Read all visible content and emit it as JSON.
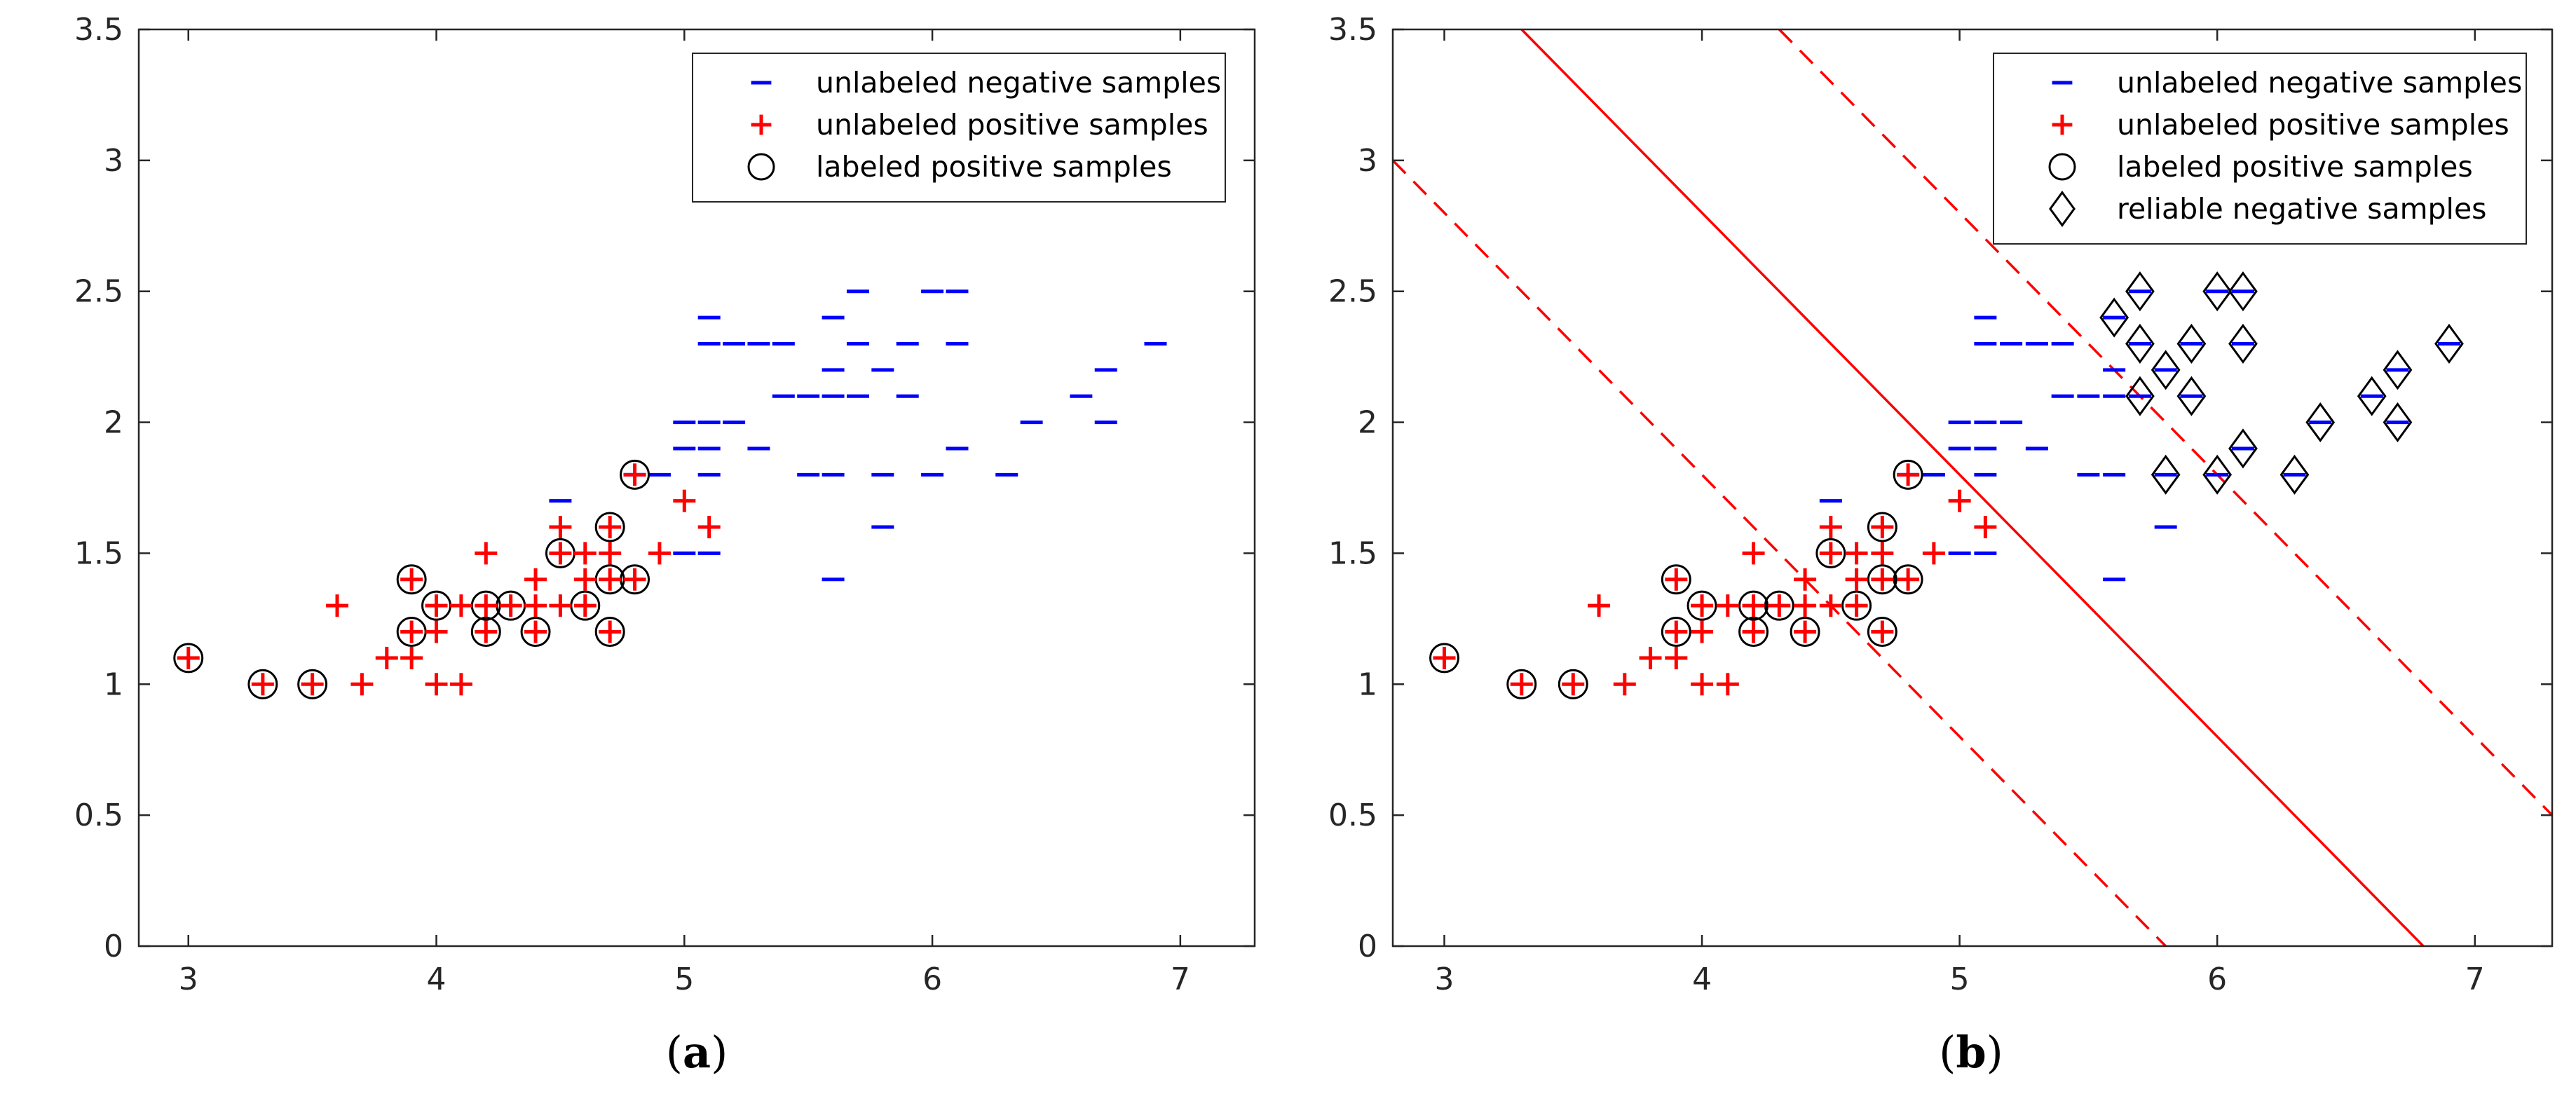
{
  "colors": {
    "negative": "#0000ff",
    "positive": "#ff0000",
    "marker_outline": "#000000",
    "axes": "#262626",
    "boundary": "#ff0000"
  },
  "chart_data": [
    {
      "id": "a",
      "type": "scatter",
      "caption": {
        "open": "(",
        "letter": "a",
        "close": ")"
      },
      "xlim": [
        2.8,
        7.3
      ],
      "ylim": [
        0,
        3.5
      ],
      "xticks": [
        3,
        4,
        5,
        6,
        7
      ],
      "xtick_labels": [
        "3",
        "4",
        "5",
        "6",
        "7"
      ],
      "yticks": [
        0,
        0.5,
        1,
        1.5,
        2,
        2.5,
        3,
        3.5
      ],
      "ytick_labels": [
        "0",
        "0.5",
        "1",
        "1.5",
        "2",
        "2.5",
        "3",
        "3.5"
      ],
      "grid": false,
      "legend_position": "top-right",
      "legend": [
        {
          "label": "unlabeled negative samples",
          "symbol": "minus",
          "color": "#0000ff"
        },
        {
          "label": "unlabeled positive samples",
          "symbol": "plus",
          "color": "#ff0000"
        },
        {
          "label": "labeled positive samples",
          "symbol": "circle",
          "color": "#000000"
        }
      ],
      "series": [
        {
          "name": "unlabeled negative samples",
          "marker": "minus",
          "points": [
            [
              4.9,
              1.8
            ],
            [
              5.0,
              1.5
            ],
            [
              5.0,
              1.9
            ],
            [
              5.0,
              2.0
            ],
            [
              5.1,
              1.5
            ],
            [
              5.1,
              1.8
            ],
            [
              5.1,
              1.9
            ],
            [
              5.1,
              2.0
            ],
            [
              5.1,
              2.3
            ],
            [
              5.1,
              2.4
            ],
            [
              5.2,
              2.0
            ],
            [
              5.2,
              2.3
            ],
            [
              5.3,
              1.9
            ],
            [
              5.3,
              2.3
            ],
            [
              5.4,
              2.1
            ],
            [
              5.4,
              2.3
            ],
            [
              5.5,
              1.8
            ],
            [
              5.5,
              2.1
            ],
            [
              5.6,
              1.4
            ],
            [
              5.6,
              1.8
            ],
            [
              5.6,
              2.1
            ],
            [
              5.6,
              2.2
            ],
            [
              5.6,
              2.4
            ],
            [
              5.7,
              2.1
            ],
            [
              5.7,
              2.3
            ],
            [
              5.7,
              2.5
            ],
            [
              5.8,
              1.6
            ],
            [
              5.8,
              1.8
            ],
            [
              5.8,
              2.2
            ],
            [
              5.9,
              2.1
            ],
            [
              5.9,
              2.3
            ],
            [
              6.0,
              1.8
            ],
            [
              6.0,
              2.5
            ],
            [
              6.1,
              1.9
            ],
            [
              6.1,
              2.3
            ],
            [
              6.1,
              2.5
            ],
            [
              6.3,
              1.8
            ],
            [
              6.4,
              2.0
            ],
            [
              6.6,
              2.1
            ],
            [
              6.7,
              2.0
            ],
            [
              6.7,
              2.2
            ],
            [
              6.9,
              2.3
            ],
            [
              4.5,
              1.7
            ],
            [
              4.8,
              1.8
            ]
          ]
        },
        {
          "name": "unlabeled positive samples",
          "marker": "plus",
          "points": [
            [
              3.0,
              1.1
            ],
            [
              3.3,
              1.0
            ],
            [
              3.5,
              1.0
            ],
            [
              3.6,
              1.3
            ],
            [
              3.7,
              1.0
            ],
            [
              3.8,
              1.1
            ],
            [
              3.9,
              1.1
            ],
            [
              3.9,
              1.2
            ],
            [
              3.9,
              1.4
            ],
            [
              4.0,
              1.0
            ],
            [
              4.0,
              1.2
            ],
            [
              4.0,
              1.3
            ],
            [
              4.1,
              1.0
            ],
            [
              4.1,
              1.3
            ],
            [
              4.2,
              1.2
            ],
            [
              4.2,
              1.3
            ],
            [
              4.2,
              1.5
            ],
            [
              4.3,
              1.3
            ],
            [
              4.4,
              1.2
            ],
            [
              4.4,
              1.3
            ],
            [
              4.4,
              1.4
            ],
            [
              4.5,
              1.3
            ],
            [
              4.5,
              1.5
            ],
            [
              4.5,
              1.6
            ],
            [
              4.6,
              1.3
            ],
            [
              4.6,
              1.4
            ],
            [
              4.6,
              1.5
            ],
            [
              4.7,
              1.2
            ],
            [
              4.7,
              1.4
            ],
            [
              4.7,
              1.5
            ],
            [
              4.7,
              1.6
            ],
            [
              4.8,
              1.4
            ],
            [
              4.8,
              1.8
            ],
            [
              4.9,
              1.5
            ],
            [
              5.0,
              1.7
            ],
            [
              5.1,
              1.6
            ]
          ]
        },
        {
          "name": "labeled positive samples",
          "marker": "circle",
          "points": [
            [
              3.0,
              1.1
            ],
            [
              3.3,
              1.0
            ],
            [
              3.5,
              1.0
            ],
            [
              3.9,
              1.2
            ],
            [
              3.9,
              1.4
            ],
            [
              4.0,
              1.3
            ],
            [
              4.2,
              1.2
            ],
            [
              4.2,
              1.3
            ],
            [
              4.3,
              1.3
            ],
            [
              4.4,
              1.2
            ],
            [
              4.5,
              1.5
            ],
            [
              4.6,
              1.3
            ],
            [
              4.7,
              1.2
            ],
            [
              4.7,
              1.4
            ],
            [
              4.7,
              1.6
            ],
            [
              4.8,
              1.4
            ],
            [
              4.8,
              1.8
            ]
          ]
        }
      ],
      "lines": []
    },
    {
      "id": "b",
      "type": "scatter",
      "caption": {
        "open": "(",
        "letter": "b",
        "close": ")"
      },
      "xlim": [
        2.8,
        7.3
      ],
      "ylim": [
        0,
        3.5
      ],
      "xticks": [
        3,
        4,
        5,
        6,
        7
      ],
      "xtick_labels": [
        "3",
        "4",
        "5",
        "6",
        "7"
      ],
      "yticks": [
        0,
        0.5,
        1,
        1.5,
        2,
        2.5,
        3,
        3.5
      ],
      "ytick_labels": [
        "0",
        "0.5",
        "1",
        "1.5",
        "2",
        "2.5",
        "3",
        "3.5"
      ],
      "grid": false,
      "legend_position": "top-right",
      "legend": [
        {
          "label": "unlabeled negative samples",
          "symbol": "minus",
          "color": "#0000ff"
        },
        {
          "label": "unlabeled positive samples",
          "symbol": "plus",
          "color": "#ff0000"
        },
        {
          "label": "labeled positive samples",
          "symbol": "circle",
          "color": "#000000"
        },
        {
          "label": "reliable negative samples",
          "symbol": "diamond",
          "color": "#000000"
        }
      ],
      "series": [
        {
          "name": "unlabeled negative samples",
          "marker": "minus",
          "points": [
            [
              4.9,
              1.8
            ],
            [
              5.0,
              1.5
            ],
            [
              5.0,
              1.9
            ],
            [
              5.0,
              2.0
            ],
            [
              5.1,
              1.5
            ],
            [
              5.1,
              1.8
            ],
            [
              5.1,
              1.9
            ],
            [
              5.1,
              2.0
            ],
            [
              5.1,
              2.3
            ],
            [
              5.1,
              2.4
            ],
            [
              5.2,
              2.0
            ],
            [
              5.2,
              2.3
            ],
            [
              5.3,
              1.9
            ],
            [
              5.3,
              2.3
            ],
            [
              5.4,
              2.1
            ],
            [
              5.4,
              2.3
            ],
            [
              5.5,
              1.8
            ],
            [
              5.5,
              2.1
            ],
            [
              5.6,
              1.4
            ],
            [
              5.6,
              1.8
            ],
            [
              5.6,
              2.1
            ],
            [
              5.6,
              2.2
            ],
            [
              5.6,
              2.4
            ],
            [
              5.7,
              2.1
            ],
            [
              5.7,
              2.3
            ],
            [
              5.7,
              2.5
            ],
            [
              5.8,
              1.6
            ],
            [
              5.8,
              1.8
            ],
            [
              5.8,
              2.2
            ],
            [
              5.9,
              2.1
            ],
            [
              5.9,
              2.3
            ],
            [
              6.0,
              1.8
            ],
            [
              6.0,
              2.5
            ],
            [
              6.1,
              1.9
            ],
            [
              6.1,
              2.3
            ],
            [
              6.1,
              2.5
            ],
            [
              6.3,
              1.8
            ],
            [
              6.4,
              2.0
            ],
            [
              6.6,
              2.1
            ],
            [
              6.7,
              2.0
            ],
            [
              6.7,
              2.2
            ],
            [
              6.9,
              2.3
            ],
            [
              4.5,
              1.7
            ],
            [
              4.8,
              1.8
            ]
          ]
        },
        {
          "name": "unlabeled positive samples",
          "marker": "plus",
          "points": [
            [
              3.0,
              1.1
            ],
            [
              3.3,
              1.0
            ],
            [
              3.5,
              1.0
            ],
            [
              3.6,
              1.3
            ],
            [
              3.7,
              1.0
            ],
            [
              3.8,
              1.1
            ],
            [
              3.9,
              1.1
            ],
            [
              3.9,
              1.2
            ],
            [
              3.9,
              1.4
            ],
            [
              4.0,
              1.0
            ],
            [
              4.0,
              1.2
            ],
            [
              4.0,
              1.3
            ],
            [
              4.1,
              1.0
            ],
            [
              4.1,
              1.3
            ],
            [
              4.2,
              1.2
            ],
            [
              4.2,
              1.3
            ],
            [
              4.2,
              1.5
            ],
            [
              4.3,
              1.3
            ],
            [
              4.4,
              1.2
            ],
            [
              4.4,
              1.3
            ],
            [
              4.4,
              1.4
            ],
            [
              4.5,
              1.3
            ],
            [
              4.5,
              1.5
            ],
            [
              4.5,
              1.6
            ],
            [
              4.6,
              1.3
            ],
            [
              4.6,
              1.4
            ],
            [
              4.6,
              1.5
            ],
            [
              4.7,
              1.2
            ],
            [
              4.7,
              1.4
            ],
            [
              4.7,
              1.5
            ],
            [
              4.7,
              1.6
            ],
            [
              4.8,
              1.4
            ],
            [
              4.8,
              1.8
            ],
            [
              4.9,
              1.5
            ],
            [
              5.0,
              1.7
            ],
            [
              5.1,
              1.6
            ]
          ]
        },
        {
          "name": "labeled positive samples",
          "marker": "circle",
          "points": [
            [
              3.0,
              1.1
            ],
            [
              3.3,
              1.0
            ],
            [
              3.5,
              1.0
            ],
            [
              3.9,
              1.2
            ],
            [
              3.9,
              1.4
            ],
            [
              4.0,
              1.3
            ],
            [
              4.2,
              1.2
            ],
            [
              4.2,
              1.3
            ],
            [
              4.3,
              1.3
            ],
            [
              4.4,
              1.2
            ],
            [
              4.5,
              1.5
            ],
            [
              4.6,
              1.3
            ],
            [
              4.7,
              1.2
            ],
            [
              4.7,
              1.4
            ],
            [
              4.7,
              1.6
            ],
            [
              4.8,
              1.4
            ],
            [
              4.8,
              1.8
            ]
          ]
        },
        {
          "name": "reliable negative samples",
          "marker": "diamond",
          "points": [
            [
              5.6,
              2.4
            ],
            [
              5.7,
              2.5
            ],
            [
              5.7,
              2.3
            ],
            [
              5.7,
              2.1
            ],
            [
              5.8,
              2.2
            ],
            [
              5.8,
              1.8
            ],
            [
              5.9,
              2.3
            ],
            [
              5.9,
              2.1
            ],
            [
              6.0,
              2.5
            ],
            [
              6.0,
              1.8
            ],
            [
              6.1,
              2.5
            ],
            [
              6.1,
              2.3
            ],
            [
              6.1,
              1.9
            ],
            [
              6.3,
              1.8
            ],
            [
              6.4,
              2.0
            ],
            [
              6.6,
              2.1
            ],
            [
              6.7,
              2.2
            ],
            [
              6.7,
              2.0
            ],
            [
              6.9,
              2.3
            ]
          ]
        }
      ],
      "lines": [
        {
          "name": "decision boundary",
          "style": "solid",
          "color": "#ff0000",
          "x": [
            3.3,
            6.8
          ],
          "y": [
            3.5,
            0.0
          ]
        },
        {
          "name": "margin lower",
          "style": "dashed",
          "color": "#ff0000",
          "x": [
            2.8,
            5.8
          ],
          "y": [
            3.0,
            0.0
          ]
        },
        {
          "name": "margin upper",
          "style": "dashed",
          "color": "#ff0000",
          "x": [
            4.3,
            7.3
          ],
          "y": [
            3.5,
            0.5
          ]
        }
      ]
    }
  ]
}
